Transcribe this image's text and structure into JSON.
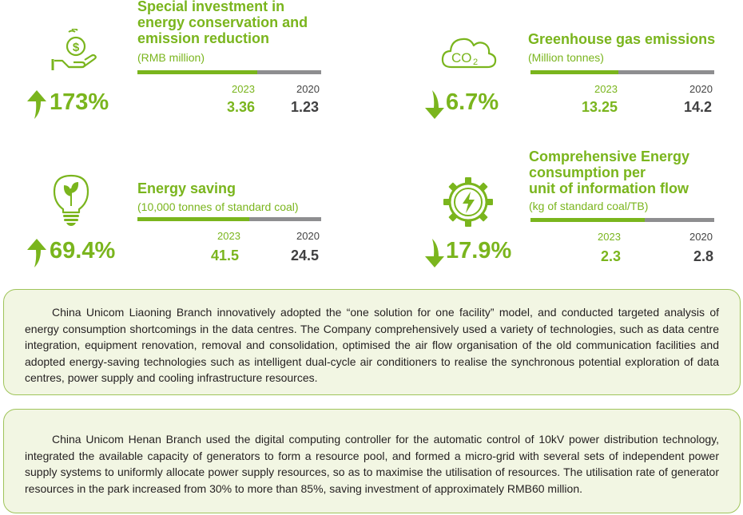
{
  "colors": {
    "accent": "#7ab51d",
    "bar_grey": "#8e8e90",
    "box_bg": "#f2f6e3",
    "box_border": "#9fc45a"
  },
  "metrics": [
    {
      "id": "investment",
      "icon": "money-hand-icon",
      "title_lines": [
        "Special investment in",
        "energy conservation and",
        "emission reduction"
      ],
      "unit": "(RMB million)",
      "trend": "up",
      "change": "173%",
      "year_a": "2023",
      "value_a": "3.36",
      "year_b": "2020",
      "value_b": "1.23"
    },
    {
      "id": "ghg",
      "icon": "co2-cloud-icon",
      "title_lines": [
        "Greenhouse gas emissions"
      ],
      "unit": "(Million tonnes)",
      "trend": "down",
      "change": "6.7%",
      "year_a": "2023",
      "value_a": "13.25",
      "year_b": "2020",
      "value_b": "14.2"
    },
    {
      "id": "saving",
      "icon": "leaf-bulb-icon",
      "title_lines": [
        "Energy saving"
      ],
      "unit": "(10,000 tonnes of standard coal)",
      "trend": "up",
      "change": "69.4%",
      "year_a": "2023",
      "value_a": "41.5",
      "year_b": "2020",
      "value_b": "24.5"
    },
    {
      "id": "consumption",
      "icon": "lightning-gear-icon",
      "title_lines": [
        "Comprehensive Energy",
        "consumption per",
        "unit of information flow"
      ],
      "unit": "(kg of standard coal/TB)",
      "trend": "down",
      "change": "17.9%",
      "year_a": "2023",
      "value_a": "2.3",
      "year_b": "2020",
      "value_b": "2.8"
    }
  ],
  "cases": [
    "China Unicom Liaoning Branch innovatively adopted the “one solution for one facility” model, and conducted targeted analysis of energy consumption shortcomings in the data centres. The Company comprehensively used a variety of technologies, such as data centre integration, equipment renovation, removal and consolidation, optimised the air flow organisation of the old communication facilities and adopted energy-saving technologies such as intelligent dual-cycle air conditioners to realise the synchronous potential exploration of data centres, power supply and cooling infrastructure resources.",
    "China Unicom Henan Branch used the digital computing controller for the automatic control of 10kV power distribution technology, integrated the available capacity of generators to form a resource pool, and formed a micro-grid with several sets of independent power supply systems to uniformly allocate power supply resources, so as to maximise the utilisation of resources. The utilisation rate of generator resources in the park increased from 30% to more than 85%, saving investment of approximately RMB60 million."
  ]
}
